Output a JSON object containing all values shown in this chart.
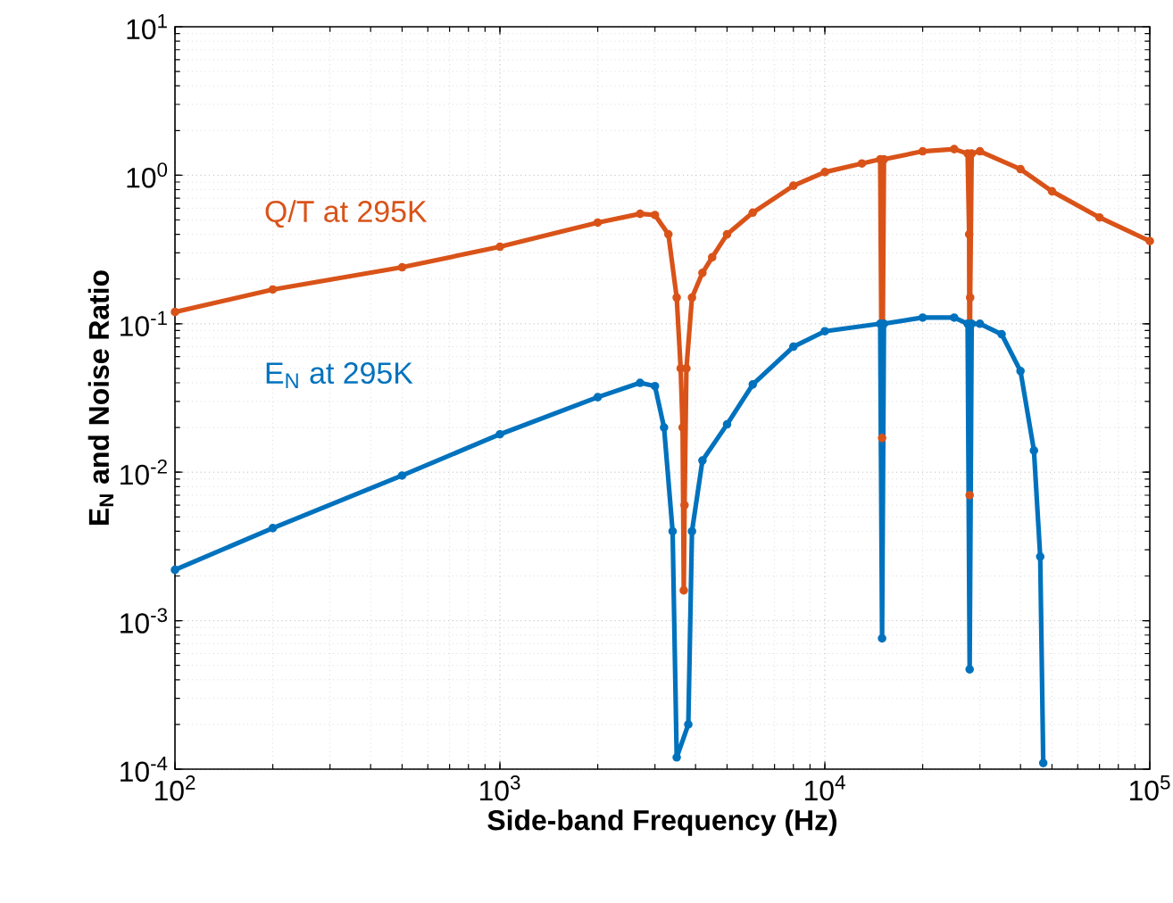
{
  "chart_data": {
    "type": "line",
    "xlabel": "Side-band Frequency (Hz)",
    "ylabel": "E$_{N}$ and Noise Ratio",
    "log": "xy",
    "grid": true,
    "marker": "circle",
    "line_style": "solid",
    "xlim": [
      100,
      100000
    ],
    "ylim": [
      0.0001,
      10
    ],
    "xticks": [
      {
        "value": 100,
        "label": "10$^{2}$"
      },
      {
        "value": 1000,
        "label": "10$^{3}$"
      },
      {
        "value": 10000,
        "label": "10$^{4}$"
      },
      {
        "value": 100000,
        "label": "10$^{5}$"
      }
    ],
    "yticks": [
      {
        "value": 0.0001,
        "label": "10$^{-4}$"
      },
      {
        "value": 0.001,
        "label": "10$^{-3}$"
      },
      {
        "value": 0.01,
        "label": "10$^{-2}$"
      },
      {
        "value": 0.1,
        "label": "10$^{-1}$"
      },
      {
        "value": 1,
        "label": "10$^{0}$"
      },
      {
        "value": 10,
        "label": "10$^{1}$"
      }
    ],
    "series": [
      {
        "name": "Q/T at 295K",
        "color": "#d95319",
        "x": [
          100,
          200,
          500,
          1000,
          2000,
          2700,
          3000,
          3300,
          3500,
          3600,
          3650,
          3680,
          3700,
          3750,
          3900,
          4200,
          4500,
          5000,
          6000,
          8000,
          10000,
          13000,
          14800,
          15000,
          15200,
          20000,
          25000,
          27500,
          27800,
          27900,
          28000,
          28300,
          30000,
          40000,
          50000,
          70000,
          100000
        ],
        "values": [
          0.12,
          0.17,
          0.24,
          0.33,
          0.48,
          0.55,
          0.54,
          0.4,
          0.15,
          0.05,
          0.02,
          0.0016,
          0.006,
          0.05,
          0.15,
          0.22,
          0.28,
          0.4,
          0.56,
          0.85,
          1.05,
          1.2,
          1.28,
          0.017,
          1.28,
          1.45,
          1.5,
          1.4,
          0.4,
          0.007,
          0.15,
          1.4,
          1.45,
          1.1,
          0.78,
          0.52,
          0.36
        ]
      },
      {
        "name": "E$_{N}$ at 295K",
        "color": "#0072bd",
        "x": [
          100,
          200,
          500,
          1000,
          2000,
          2700,
          3000,
          3200,
          3400,
          3500,
          3650,
          3800,
          3900,
          4200,
          5000,
          6000,
          8000,
          10000,
          14800,
          15000,
          15200,
          20000,
          25000,
          27500,
          27900,
          28300,
          30000,
          35000,
          40000,
          44000,
          46000,
          47000
        ],
        "values": [
          0.0022,
          0.0042,
          0.0095,
          0.018,
          0.032,
          0.04,
          0.038,
          0.02,
          0.004,
          0.00012,
          null,
          0.0002,
          0.004,
          0.012,
          0.021,
          0.039,
          0.07,
          0.089,
          0.1,
          0.00076,
          0.1,
          0.11,
          0.11,
          0.1,
          0.00047,
          0.1,
          0.1,
          0.085,
          0.048,
          0.014,
          0.0027,
          0.00011
        ]
      }
    ]
  }
}
